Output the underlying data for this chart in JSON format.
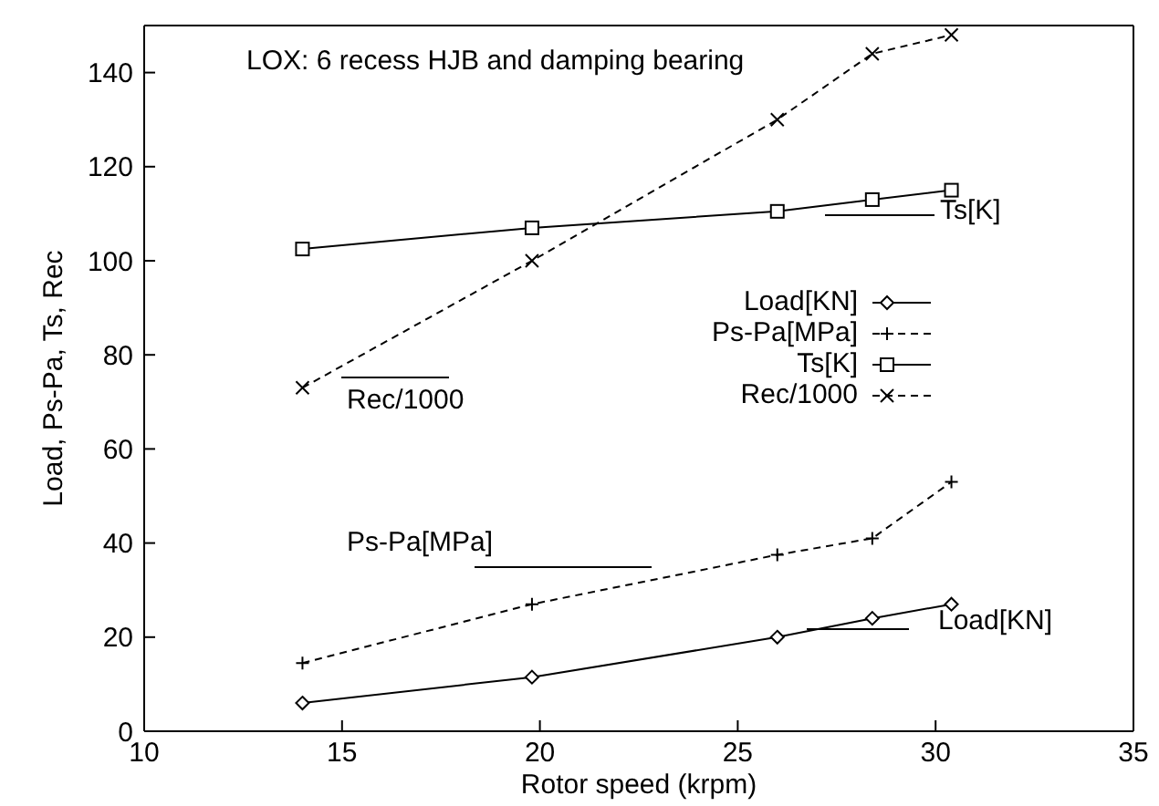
{
  "chart_data": {
    "type": "line",
    "title": "LOX: 6 recess HJB and damping bearing",
    "xlabel": "Rotor speed (krpm)",
    "ylabel": "Load, Ps-Pa, Ts, Rec",
    "x": [
      14,
      19.8,
      26,
      28.4,
      30.4
    ],
    "series": [
      {
        "name": "Load[KN]",
        "color": "#000000",
        "marker": "diamond",
        "line_style": "solid",
        "values": [
          6,
          11.5,
          20,
          24,
          27
        ]
      },
      {
        "name": "Ps-Pa[MPa]",
        "color": "#000000",
        "marker": "cross",
        "line_style": "dashed",
        "values": [
          14.5,
          27,
          37.5,
          41,
          53
        ]
      },
      {
        "name": "Ts[K]",
        "color": "#000000",
        "marker": "square",
        "line_style": "solid",
        "values": [
          102.5,
          107,
          110.5,
          113,
          115
        ]
      },
      {
        "name": "Rec/1000",
        "color": "#000000",
        "marker": "x",
        "line_style": "dashed",
        "values": [
          73,
          100,
          130,
          144,
          148
        ]
      }
    ],
    "annotations": [
      "Ts[K]",
      "Rec/1000",
      "Ps-Pa[MPa]",
      "Load[KN]"
    ],
    "xlim": [
      10,
      35
    ],
    "xticks": [
      10,
      15,
      20,
      25,
      30,
      35
    ],
    "ylim": [
      0,
      150
    ],
    "yticks": [
      0,
      20,
      40,
      60,
      80,
      100,
      120,
      140
    ],
    "grid": false,
    "legend": "right"
  }
}
